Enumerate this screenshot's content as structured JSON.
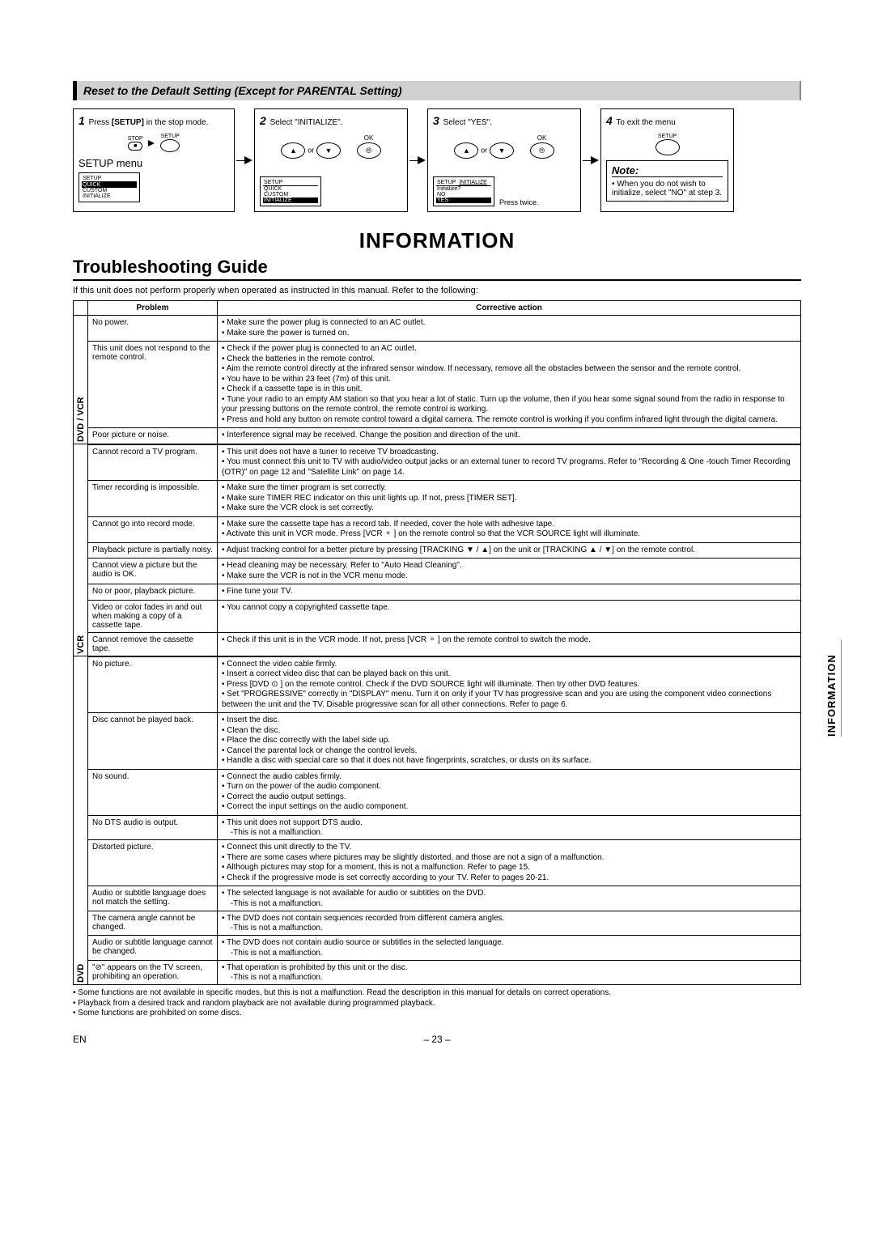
{
  "section_title": "Reset to the Default Setting (Except for PARENTAL Setting)",
  "steps": {
    "s1": {
      "num": "1",
      "text_a": "Press ",
      "text_b": "[SETUP]",
      "text_c": " in the stop mode.",
      "menu_title": "SETUP menu",
      "stop_label": "STOP",
      "setup_label": "SETUP",
      "menu": {
        "header": "SETUP",
        "items": [
          "QUICK",
          "CUSTOM",
          "INITIALIZE"
        ],
        "sel": 0
      }
    },
    "s2": {
      "num": "2",
      "text": "Select \"INITIALIZE\".",
      "menu": {
        "header": "SETUP",
        "items": [
          "QUICK",
          "CUSTOM",
          "INITIALIZE"
        ],
        "sel": 2
      },
      "ok": "OK",
      "or": "or"
    },
    "s3": {
      "num": "3",
      "text": "Select \"YES\".",
      "menu": {
        "header": "SETUP",
        "sub": "INITIALIZE",
        "q": "Initialize?",
        "items": [
          "NO",
          "YES"
        ],
        "sel": 1
      },
      "ok": "OK",
      "press_twice": "Press twice.",
      "or": "or"
    },
    "s4": {
      "num": "4",
      "text": "To exit the menu",
      "setup_label": "SETUP",
      "note_title": "Note:",
      "note_body": "When you do not wish to initialize, select \"NO\" at step 3."
    }
  },
  "information_heading": "INFORMATION",
  "troubleshooting_heading": "Troubleshooting Guide",
  "intro": "If this unit does not perform properly when operated as instructed in this manual. Refer to the following:",
  "table": {
    "head_problem": "Problem",
    "head_action": "Corrective action",
    "sections": [
      {
        "cat": "DVD / VCR",
        "rows": [
          {
            "p": "No power.",
            "a": [
              "Make sure the power plug is connected to an AC outlet.",
              "Make sure the power is turned on."
            ]
          },
          {
            "p": "This unit does not respond to the remote control.",
            "a": [
              "Check if the power plug is connected to an AC outlet.",
              "Check the batteries in the remote control.",
              "Aim the remote control directly at the infrared sensor window. If necessary, remove all the obstacles between the sensor and the remote control.",
              "You have to be within 23 feet (7m) of this unit.",
              "Check if a cassette tape is in this unit.",
              "Tune your radio to an empty AM station so that you hear a lot of static. Turn up the volume, then if you hear some signal sound from the radio in response to your pressing buttons on the remote control, the remote control is working.",
              "Press and hold any button on remote control toward a digital camera. The remote control is working if you confirm infrared light through the digital camera."
            ]
          },
          {
            "p": "Poor picture or noise.",
            "a": [
              "Interference signal may be received. Change the position and direction of the unit."
            ]
          }
        ]
      },
      {
        "cat": "VCR",
        "rows": [
          {
            "p": "Cannot record a TV program.",
            "a": [
              "This unit does not have a tuner to receive TV broadcasting.",
              "You must connect this unit to TV with audio/video output jacks or an external tuner to record TV programs. Refer to \"Recording & One -touch Timer Recording (OTR)\" on page 12 and \"Satellite Link\" on page 14."
            ]
          },
          {
            "p": "Timer recording is impossible.",
            "a": [
              "Make sure the timer program is set correctly.",
              "Make sure TIMER REC indicator on this unit lights up. If not, press [TIMER SET].",
              "Make sure the VCR clock is set correctly."
            ]
          },
          {
            "p": "Cannot go into record mode.",
            "a": [
              "Make sure the cassette tape has a record tab. If needed, cover the hole with adhesive tape.",
              "Activate this unit in VCR mode. Press [VCR ⚬ ] on the remote control so that the VCR SOURCE light will illuminate."
            ]
          },
          {
            "p": "Playback picture is partially noisy.",
            "a": [
              "Adjust tracking control for a better picture by pressing [TRACKING ▼ / ▲] on the unit or [TRACKING ▲ / ▼] on the remote control."
            ]
          },
          {
            "p": "Cannot view a picture but the audio is OK.",
            "a": [
              "Head cleaning may be necessary. Refer to \"Auto Head Cleaning\".",
              "Make sure the VCR is not in the VCR menu mode."
            ]
          },
          {
            "p": "No or poor, playback picture.",
            "a": [
              "Fine tune your TV."
            ]
          },
          {
            "p": "Video or color fades in and out when making a copy of a cassette tape.",
            "a": [
              "You cannot copy a copyrighted cassette tape."
            ]
          },
          {
            "p": "Cannot remove the cassette tape.",
            "a": [
              "Check if this unit is in the VCR mode. If not, press [VCR ⚬ ] on the remote control to switch the mode."
            ]
          }
        ]
      },
      {
        "cat": "DVD",
        "rows": [
          {
            "p": "No picture.",
            "a": [
              "Connect the video cable firmly.",
              "Insert a correct video disc that can be played back on this unit.",
              "Press [DVD ⊙ ] on the remote control. Check if the DVD SOURCE light will illuminate. Then try other DVD features.",
              "Set \"PROGRESSIVE\" correctly in \"DISPLAY\" menu. Turn it on only if your TV has progressive scan and you are using the component video connections between the unit and the TV. Disable progressive scan for all other connections. Refer to page 6."
            ]
          },
          {
            "p": "Disc cannot be played back.",
            "a": [
              "Insert the disc.",
              "Clean the disc.",
              "Place the disc correctly with the label side up.",
              "Cancel the parental lock or change the control levels.",
              "Handle a disc with special care so that it does not have fingerprints, scratches, or dusts on its surface."
            ]
          },
          {
            "p": "No sound.",
            "a": [
              "Connect the audio cables firmly.",
              "Turn on the power of the audio component.",
              "Correct the audio output settings.",
              "Correct the input settings on the audio component."
            ]
          },
          {
            "p": "No DTS audio is output.",
            "a": [
              "This unit does not support DTS audio.",
              "-This is not a malfunction."
            ]
          },
          {
            "p": "Distorted picture.",
            "a": [
              "Connect this unit directly to the TV.",
              "There are some cases where pictures may be slightly distorted, and those are not a sign of a malfunction.",
              "Although pictures may stop for a moment, this is not a malfunction. Refer to page 15.",
              "Check if the progressive mode is set correctly according to your TV. Refer to pages 20-21."
            ]
          },
          {
            "p": "Audio or subtitle language does not match the setting.",
            "a": [
              "The selected language is not available for audio or subtitles on the DVD.",
              "-This is not a malfunction."
            ]
          },
          {
            "p": "The camera angle cannot be changed.",
            "a": [
              "The DVD does not contain sequences recorded from different camera angles.",
              "-This is not a malfunction."
            ]
          },
          {
            "p": "Audio or subtitle language cannot be changed.",
            "a": [
              "The DVD does not contain audio source or subtitles in the selected language.",
              "-This is not a malfunction."
            ]
          },
          {
            "p": "\"⊘\" appears on the TV screen, prohibiting an operation.",
            "a": [
              "That operation is prohibited by this unit or the disc.",
              "-This is not a malfunction."
            ]
          }
        ]
      }
    ]
  },
  "footnotes": [
    "Some functions are not available in specific modes, but this is not a malfunction. Read the description in this manual for details on correct operations.",
    "Playback from a desired track and random playback are not available during programmed playback.",
    "Some functions are prohibited on some discs."
  ],
  "page_number": "– 23 –",
  "lang_mark": "EN",
  "side_tab": "INFORMATION"
}
